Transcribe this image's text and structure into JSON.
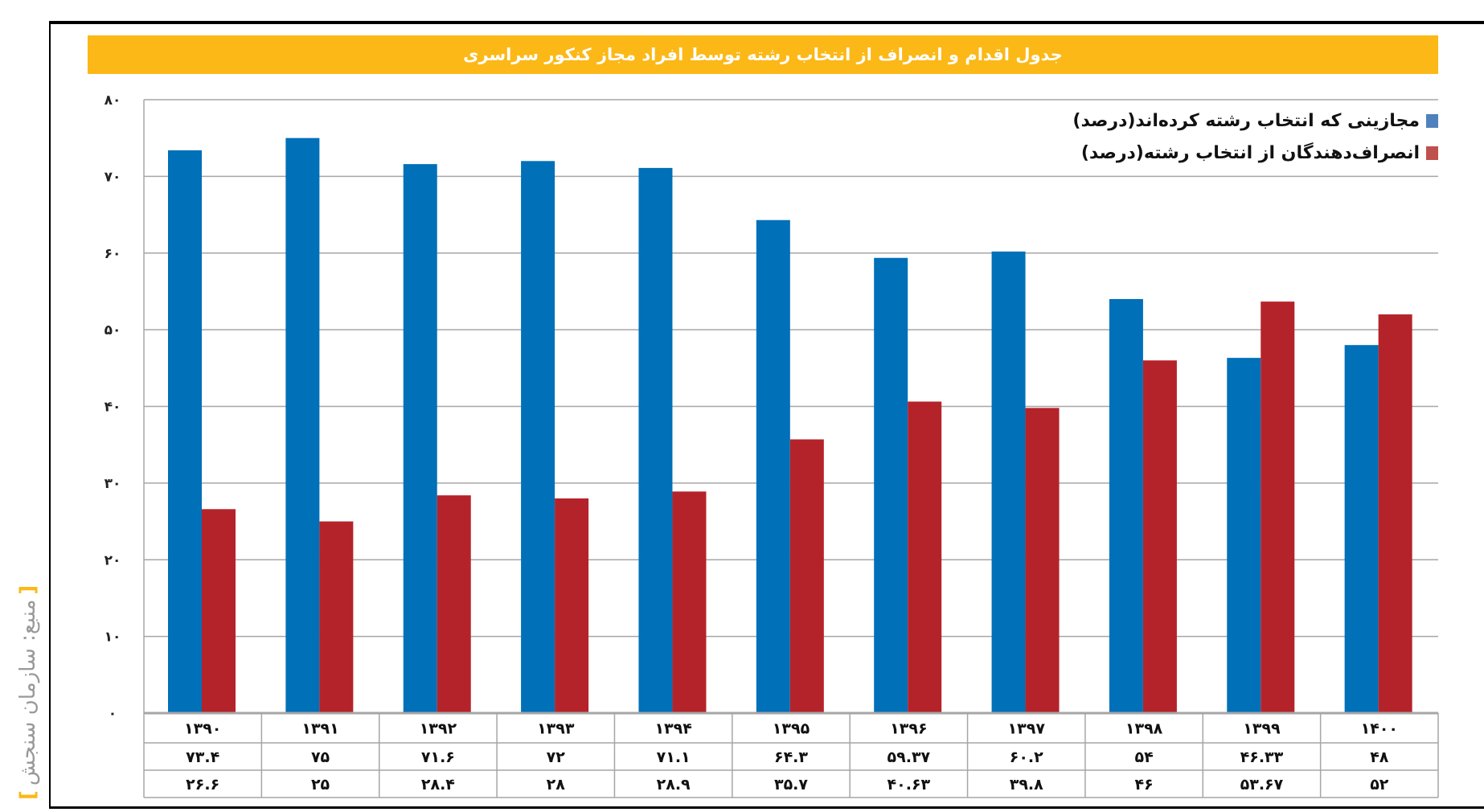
{
  "title": "جدول اقدام و انصراف از انتخاب رشته توسط افراد مجاز کنکور سراسری",
  "source": "منبع: سازمان سنجش",
  "colors": {
    "accent": "#fbb817",
    "series1": "#0070b8",
    "series2": "#b5232a",
    "grid": "#a6a6a6"
  },
  "chart_data": {
    "type": "bar",
    "title": "جدول اقدام و انصراف از انتخاب رشته توسط افراد مجاز کنکور سراسری",
    "categories": [
      "۱۳۹۰",
      "۱۳۹۱",
      "۱۳۹۲",
      "۱۳۹۳",
      "۱۳۹۴",
      "۱۳۹۵",
      "۱۳۹۶",
      "۱۳۹۷",
      "۱۳۹۸",
      "۱۳۹۹",
      "۱۴۰۰"
    ],
    "series": [
      {
        "name": "مجازینی که انتخاب رشته کرده‌اند(درصد)",
        "color": "#0070b8",
        "values": [
          73.4,
          75,
          71.6,
          72,
          71.1,
          64.3,
          59.37,
          60.2,
          54,
          46.33,
          48
        ],
        "labels": [
          "۷۳.۴",
          "۷۵",
          "۷۱.۶",
          "۷۲",
          "۷۱.۱",
          "۶۴.۳",
          "۵۹.۳۷",
          "۶۰.۲",
          "۵۴",
          "۴۶.۳۳",
          "۴۸"
        ]
      },
      {
        "name": "انصراف‌دهندگان از انتخاب رشته(درصد)",
        "color": "#b5232a",
        "values": [
          26.6,
          25,
          28.4,
          28,
          28.9,
          35.7,
          40.63,
          39.8,
          46,
          53.67,
          52
        ],
        "labels": [
          "۲۶.۶",
          "۲۵",
          "۲۸.۴",
          "۲۸",
          "۲۸.۹",
          "۳۵.۷",
          "۴۰.۶۳",
          "۳۹.۸",
          "۴۶",
          "۵۳.۶۷",
          "۵۲"
        ]
      }
    ],
    "ylim": [
      0,
      80
    ],
    "yticks": [
      0,
      10,
      20,
      30,
      40,
      50,
      60,
      70,
      80
    ],
    "ytick_labels": [
      "۰",
      "۱۰",
      "۲۰",
      "۳۰",
      "۴۰",
      "۵۰",
      "۶۰",
      "۷۰",
      "۸۰"
    ],
    "grid": true,
    "legend": "top-right",
    "data_table": true
  }
}
